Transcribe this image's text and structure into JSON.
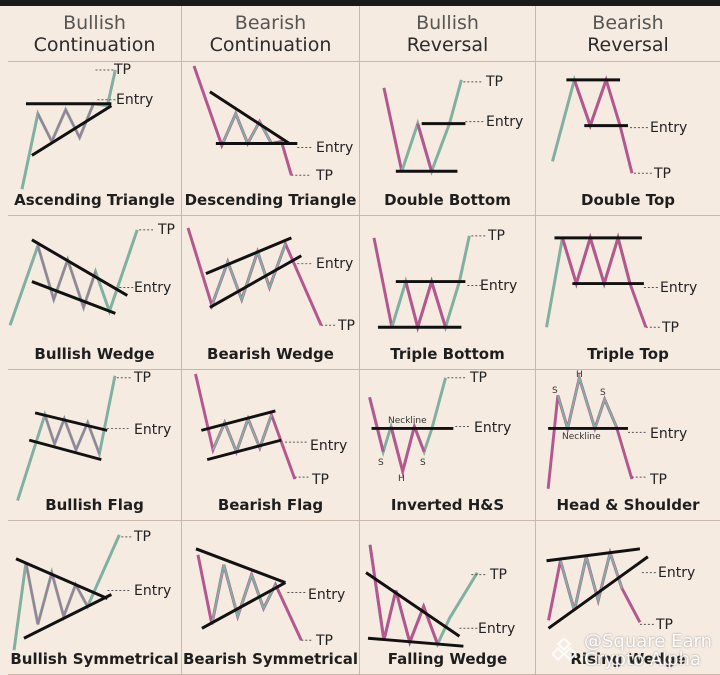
{
  "headers": [
    {
      "line1": "Bullish",
      "line2": "Continuation"
    },
    {
      "line1": "Bearish",
      "line2": "Continuation"
    },
    {
      "line1": "Bullish",
      "line2": "Reversal"
    },
    {
      "line1": "Bearish",
      "line2": "Reversal"
    }
  ],
  "markers": {
    "tp": "TP",
    "entry": "Entry",
    "neckline": "Neckline",
    "s": "S",
    "h": "H"
  },
  "patterns": [
    {
      "key": "ascending-triangle",
      "label": "Ascending Triangle"
    },
    {
      "key": "descending-triangle",
      "label": "Descending Triangle"
    },
    {
      "key": "double-bottom",
      "label": "Double Bottom"
    },
    {
      "key": "double-top",
      "label": "Double Top"
    },
    {
      "key": "bullish-wedge",
      "label": "Bullish Wedge"
    },
    {
      "key": "bearish-wedge",
      "label": "Bearish Wedge"
    },
    {
      "key": "triple-bottom",
      "label": "Triple Bottom"
    },
    {
      "key": "triple-top",
      "label": "Triple Top"
    },
    {
      "key": "bullish-flag",
      "label": "Bullish Flag"
    },
    {
      "key": "bearish-flag",
      "label": "Bearish Flag"
    },
    {
      "key": "inverted-hs",
      "label": "Inverted H&S"
    },
    {
      "key": "head-shoulder",
      "label": "Head & Shoulder"
    },
    {
      "key": "bullish-symmetrical",
      "label": "Bullish Symmetrical"
    },
    {
      "key": "bearish-symmetrical",
      "label": "Bearish Symmetrical"
    },
    {
      "key": "falling-wedge",
      "label": "Falling Wedge"
    },
    {
      "key": "rising-wedge",
      "label": "Rising Wedge"
    }
  ],
  "colors": {
    "background": "#f6ebe1",
    "bullish_line": "#7fb0a0",
    "bearish_line": "#b5578f",
    "trendline": "#111111"
  },
  "watermark": {
    "line1": "@Square Earn",
    "line2": "Crypto Alpha"
  }
}
